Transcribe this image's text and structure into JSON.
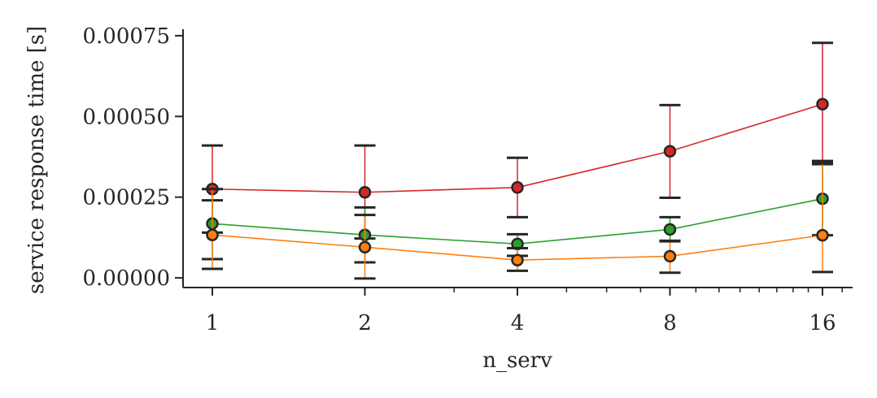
{
  "chart_data": {
    "type": "line",
    "xlabel": "n_serv",
    "ylabel": "service response time [s]",
    "x_scale": "log2",
    "x": [
      1,
      2,
      4,
      8,
      16
    ],
    "x_tick_labels": [
      "1",
      "2",
      "4",
      "8",
      "16"
    ],
    "ylim": [
      -3e-05,
      0.00077
    ],
    "y_ticks": [
      0,
      0.00025,
      0.0005,
      0.00075
    ],
    "y_tick_labels": [
      "0.00000",
      "0.00025",
      "0.00050",
      "0.00075"
    ],
    "grid": false,
    "legend": "none",
    "series": [
      {
        "color": "#d62728",
        "values": [
          0.000275,
          0.000265,
          0.00028,
          0.000392,
          0.000538
        ],
        "err_low": [
          0.00014,
          0.000122,
          0.000188,
          0.000248,
          0.000352
        ],
        "err_high": [
          0.00041,
          0.00041,
          0.000372,
          0.000535,
          0.000728
        ]
      },
      {
        "color": "#2ca02c",
        "values": [
          0.000168,
          0.000133,
          0.000105,
          0.00015,
          0.000245
        ],
        "err_low": [
          5.8e-05,
          4.8e-05,
          6.8e-05,
          0.000115,
          0.000132
        ],
        "err_high": [
          0.00024,
          0.000218,
          0.000135,
          0.000188,
          0.000362
        ]
      },
      {
        "color": "#ff7f0e",
        "values": [
          0.000133,
          9.5e-05,
          5.5e-05,
          6.7e-05,
          0.000132
        ],
        "err_low": [
          2.8e-05,
          -2e-06,
          2.2e-05,
          1.6e-05,
          1.8e-05
        ],
        "err_high": [
          0.000275,
          0.000195,
          9.2e-05,
          0.000113,
          0.000355
        ]
      }
    ]
  }
}
